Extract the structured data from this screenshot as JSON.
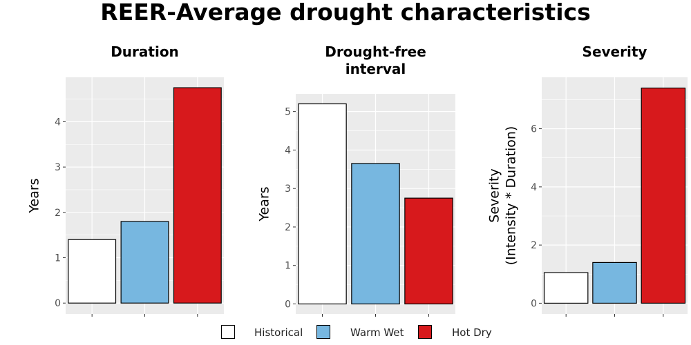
{
  "main_title": "REER-Average drought characteristics",
  "legend": [
    {
      "label": "Historical",
      "color": "#ffffff"
    },
    {
      "label": "Warm Wet",
      "color": "#77b7e0"
    },
    {
      "label": "Hot Dry",
      "color": "#d7191c"
    }
  ],
  "chart_data": [
    {
      "type": "bar",
      "title": "Duration",
      "ylabel": "Years",
      "categories": [
        "Historical",
        "Warm Wet",
        "Hot Dry"
      ],
      "values": [
        1.4,
        1.8,
        4.75
      ],
      "yticks": [
        0,
        1,
        2,
        3,
        4
      ],
      "ylim": [
        -0.24,
        4.98
      ],
      "grid": true
    },
    {
      "type": "bar",
      "title": [
        "Drought-free",
        "interval"
      ],
      "ylabel": "Years",
      "categories": [
        "Historical",
        "Warm Wet",
        "Hot Dry"
      ],
      "values": [
        5.2,
        3.65,
        2.75
      ],
      "yticks": [
        0,
        1,
        2,
        3,
        4,
        5
      ],
      "ylim": [
        -0.26,
        5.46
      ],
      "grid": true
    },
    {
      "type": "bar",
      "title": "Severity",
      "ylabel": [
        "Severity",
        "(Intensity * Duration)"
      ],
      "categories": [
        "Historical",
        "Warm Wet",
        "Hot Dry"
      ],
      "values": [
        1.05,
        1.4,
        7.4
      ],
      "yticks": [
        0,
        2,
        4,
        6
      ],
      "ylim": [
        -0.37,
        7.77
      ],
      "grid": true
    }
  ]
}
